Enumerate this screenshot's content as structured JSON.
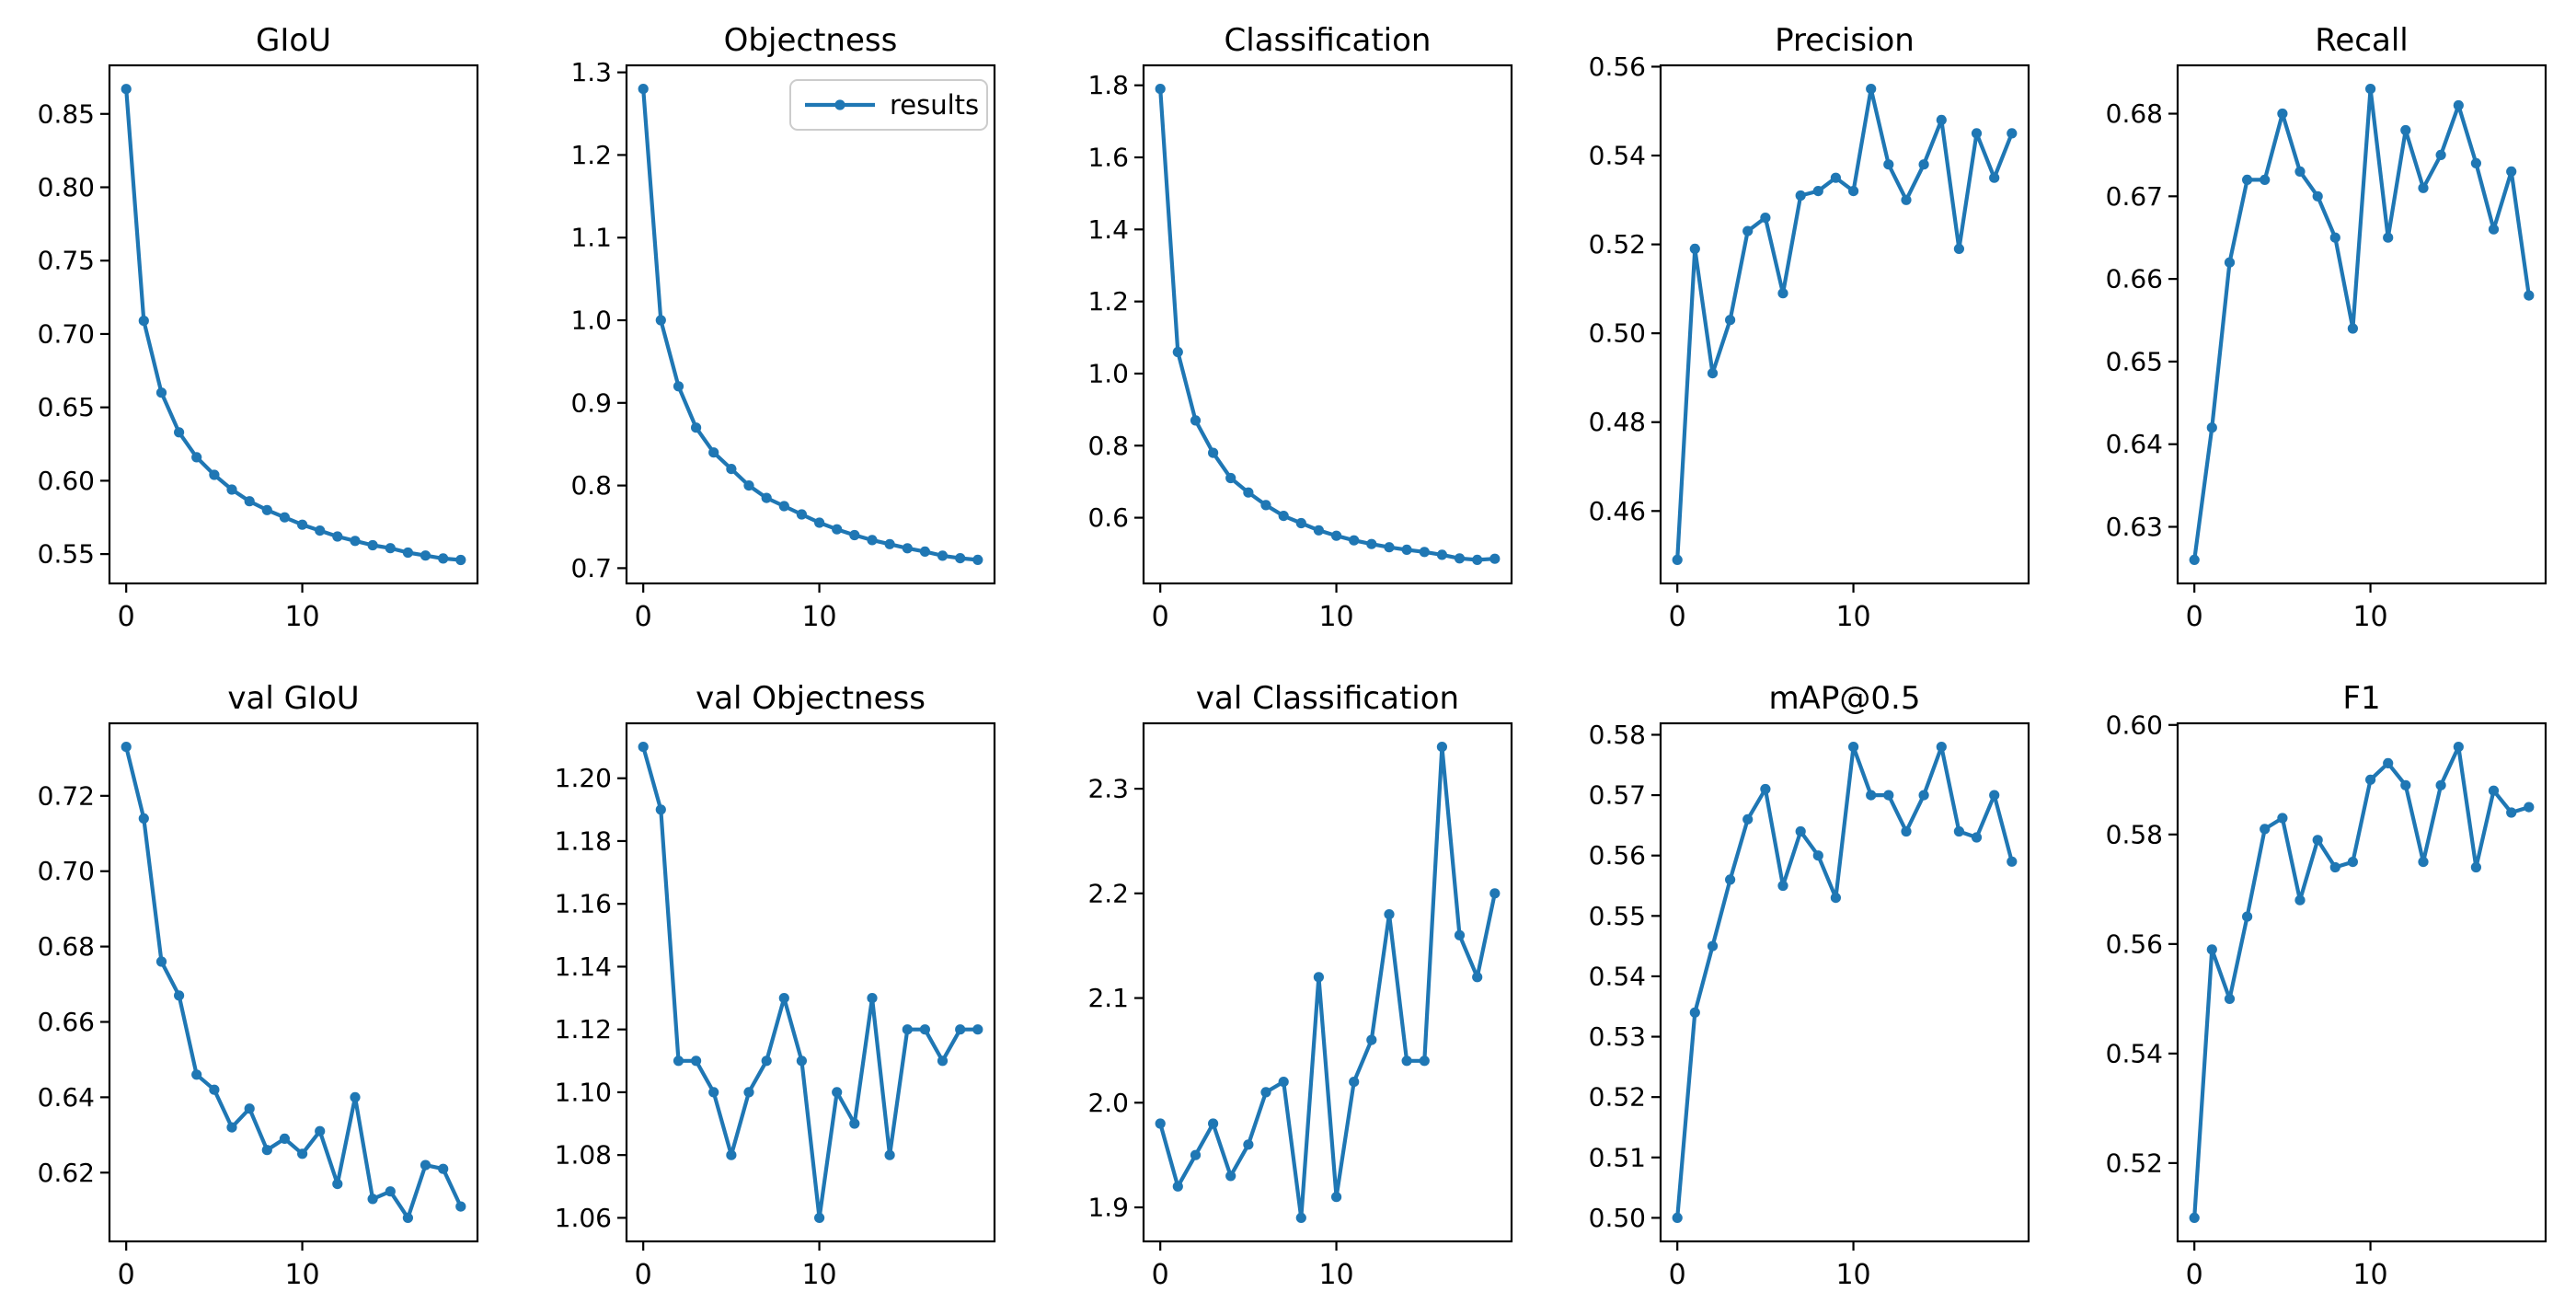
{
  "figure": {
    "background": "#ffffff",
    "line_color": "#1f77b4",
    "text_color": "#000000",
    "legend_label": "results"
  },
  "chart_data": [
    {
      "type": "line",
      "title": "GIoU",
      "series_name": "results",
      "legend_visible": false,
      "x": [
        0,
        1,
        2,
        3,
        4,
        5,
        6,
        7,
        8,
        9,
        10,
        11,
        12,
        13,
        14,
        15,
        16,
        17,
        18,
        19
      ],
      "values": [
        0.867,
        0.709,
        0.66,
        0.633,
        0.616,
        0.604,
        0.594,
        0.586,
        0.58,
        0.575,
        0.57,
        0.566,
        0.562,
        0.559,
        0.556,
        0.554,
        0.551,
        0.549,
        0.547,
        0.546
      ],
      "xlim": [
        -0.95,
        19.95
      ],
      "ylim": [
        0.53,
        0.8831
      ],
      "xticks": [
        0,
        10
      ],
      "yticks": [
        0.55,
        0.6,
        0.65,
        0.7,
        0.75,
        0.8,
        0.85
      ],
      "ytick_decimals": 2,
      "grid": false
    },
    {
      "type": "line",
      "title": "Objectness",
      "series_name": "results",
      "legend_visible": true,
      "legend_position": "upper right",
      "x": [
        0,
        1,
        2,
        3,
        4,
        5,
        6,
        7,
        8,
        9,
        10,
        11,
        12,
        13,
        14,
        15,
        16,
        17,
        18,
        19
      ],
      "values": [
        1.28,
        1.0,
        0.92,
        0.87,
        0.84,
        0.82,
        0.8,
        0.785,
        0.775,
        0.765,
        0.755,
        0.747,
        0.74,
        0.734,
        0.729,
        0.724,
        0.72,
        0.715,
        0.712,
        0.71
      ],
      "xlim": [
        -0.95,
        19.95
      ],
      "ylim": [
        0.6815,
        1.3085
      ],
      "xticks": [
        0,
        10
      ],
      "yticks": [
        0.7,
        0.8,
        0.9,
        1.0,
        1.1,
        1.2,
        1.3
      ],
      "ytick_decimals": 1,
      "grid": false
    },
    {
      "type": "line",
      "title": "Classification",
      "series_name": "results",
      "legend_visible": false,
      "x": [
        0,
        1,
        2,
        3,
        4,
        5,
        6,
        7,
        8,
        9,
        10,
        11,
        12,
        13,
        14,
        15,
        16,
        17,
        18,
        19
      ],
      "values": [
        1.79,
        1.06,
        0.87,
        0.78,
        0.71,
        0.67,
        0.635,
        0.605,
        0.585,
        0.565,
        0.55,
        0.537,
        0.527,
        0.518,
        0.511,
        0.505,
        0.497,
        0.487,
        0.483,
        0.486
      ],
      "xlim": [
        -0.95,
        19.95
      ],
      "ylim": [
        0.4176,
        1.8554
      ],
      "xticks": [
        0,
        10
      ],
      "yticks": [
        0.6,
        0.8,
        1.0,
        1.2,
        1.4,
        1.6,
        1.8
      ],
      "ytick_decimals": 1,
      "grid": false
    },
    {
      "type": "line",
      "title": "Precision",
      "series_name": "results",
      "legend_visible": false,
      "x": [
        0,
        1,
        2,
        3,
        4,
        5,
        6,
        7,
        8,
        9,
        10,
        11,
        12,
        13,
        14,
        15,
        16,
        17,
        18,
        19
      ],
      "values": [
        0.449,
        0.519,
        0.491,
        0.503,
        0.523,
        0.526,
        0.509,
        0.531,
        0.532,
        0.535,
        0.532,
        0.555,
        0.538,
        0.53,
        0.538,
        0.548,
        0.519,
        0.545,
        0.535,
        0.545
      ],
      "xlim": [
        -0.95,
        19.95
      ],
      "ylim": [
        0.4437,
        0.5603
      ],
      "xticks": [
        0,
        10
      ],
      "yticks": [
        0.46,
        0.48,
        0.5,
        0.52,
        0.54,
        0.56
      ],
      "ytick_decimals": 2,
      "grid": false
    },
    {
      "type": "line",
      "title": "Recall",
      "series_name": "results",
      "legend_visible": false,
      "x": [
        0,
        1,
        2,
        3,
        4,
        5,
        6,
        7,
        8,
        9,
        10,
        11,
        12,
        13,
        14,
        15,
        16,
        17,
        18,
        19
      ],
      "values": [
        0.626,
        0.642,
        0.662,
        0.672,
        0.672,
        0.68,
        0.673,
        0.67,
        0.665,
        0.654,
        0.683,
        0.665,
        0.678,
        0.671,
        0.675,
        0.681,
        0.674,
        0.666,
        0.673,
        0.658
      ],
      "xlim": [
        -0.95,
        19.95
      ],
      "ylim": [
        0.62315,
        0.68585
      ],
      "xticks": [
        0,
        10
      ],
      "yticks": [
        0.63,
        0.64,
        0.65,
        0.66,
        0.67,
        0.68
      ],
      "ytick_decimals": 2,
      "grid": false
    },
    {
      "type": "line",
      "title": "val GIoU",
      "series_name": "results",
      "legend_visible": false,
      "x": [
        0,
        1,
        2,
        3,
        4,
        5,
        6,
        7,
        8,
        9,
        10,
        11,
        12,
        13,
        14,
        15,
        16,
        17,
        18,
        19
      ],
      "values": [
        0.733,
        0.714,
        0.676,
        0.667,
        0.646,
        0.642,
        0.632,
        0.637,
        0.626,
        0.629,
        0.625,
        0.631,
        0.617,
        0.64,
        0.613,
        0.615,
        0.608,
        0.622,
        0.621,
        0.611
      ],
      "xlim": [
        -0.95,
        19.95
      ],
      "ylim": [
        0.60175,
        0.73925
      ],
      "xticks": [
        0,
        10
      ],
      "yticks": [
        0.62,
        0.64,
        0.66,
        0.68,
        0.7,
        0.72
      ],
      "ytick_decimals": 2,
      "grid": false
    },
    {
      "type": "line",
      "title": "val Objectness",
      "series_name": "results",
      "legend_visible": false,
      "x": [
        0,
        1,
        2,
        3,
        4,
        5,
        6,
        7,
        8,
        9,
        10,
        11,
        12,
        13,
        14,
        15,
        16,
        17,
        18,
        19
      ],
      "values": [
        1.21,
        1.19,
        1.11,
        1.11,
        1.1,
        1.08,
        1.1,
        1.11,
        1.13,
        1.11,
        1.06,
        1.1,
        1.09,
        1.13,
        1.08,
        1.12,
        1.12,
        1.11,
        1.12,
        1.12
      ],
      "xlim": [
        -0.95,
        19.95
      ],
      "ylim": [
        1.0525,
        1.2175
      ],
      "xticks": [
        0,
        10
      ],
      "yticks": [
        1.06,
        1.08,
        1.1,
        1.12,
        1.14,
        1.16,
        1.18,
        1.2
      ],
      "ytick_decimals": 2,
      "grid": false
    },
    {
      "type": "line",
      "title": "val Classification",
      "series_name": "results",
      "legend_visible": false,
      "x": [
        0,
        1,
        2,
        3,
        4,
        5,
        6,
        7,
        8,
        9,
        10,
        11,
        12,
        13,
        14,
        15,
        16,
        17,
        18,
        19
      ],
      "values": [
        1.98,
        1.92,
        1.95,
        1.98,
        1.93,
        1.96,
        2.01,
        2.02,
        1.89,
        2.12,
        1.91,
        2.02,
        2.06,
        2.18,
        2.04,
        2.04,
        2.34,
        2.16,
        2.12,
        2.2
      ],
      "xlim": [
        -0.95,
        19.95
      ],
      "ylim": [
        1.8675,
        2.3625
      ],
      "xticks": [
        0,
        10
      ],
      "yticks": [
        1.9,
        2.0,
        2.1,
        2.2,
        2.3
      ],
      "ytick_decimals": 1,
      "grid": false
    },
    {
      "type": "line",
      "title": "mAP@0.5",
      "series_name": "results",
      "legend_visible": false,
      "x": [
        0,
        1,
        2,
        3,
        4,
        5,
        6,
        7,
        8,
        9,
        10,
        11,
        12,
        13,
        14,
        15,
        16,
        17,
        18,
        19
      ],
      "values": [
        0.5,
        0.534,
        0.545,
        0.556,
        0.566,
        0.571,
        0.555,
        0.564,
        0.56,
        0.553,
        0.578,
        0.57,
        0.57,
        0.564,
        0.57,
        0.578,
        0.564,
        0.563,
        0.57,
        0.559
      ],
      "xlim": [
        -0.95,
        19.95
      ],
      "ylim": [
        0.4961,
        0.5819
      ],
      "xticks": [
        0,
        10
      ],
      "yticks": [
        0.5,
        0.51,
        0.52,
        0.53,
        0.54,
        0.55,
        0.56,
        0.57,
        0.58
      ],
      "ytick_decimals": 2,
      "grid": false
    },
    {
      "type": "line",
      "title": "F1",
      "series_name": "results",
      "legend_visible": false,
      "x": [
        0,
        1,
        2,
        3,
        4,
        5,
        6,
        7,
        8,
        9,
        10,
        11,
        12,
        13,
        14,
        15,
        16,
        17,
        18,
        19
      ],
      "values": [
        0.51,
        0.559,
        0.55,
        0.565,
        0.581,
        0.583,
        0.568,
        0.579,
        0.574,
        0.575,
        0.59,
        0.593,
        0.589,
        0.575,
        0.589,
        0.596,
        0.574,
        0.588,
        0.584,
        0.585
      ],
      "xlim": [
        -0.95,
        19.95
      ],
      "ylim": [
        0.5057,
        0.6003
      ],
      "xticks": [
        0,
        10
      ],
      "yticks": [
        0.52,
        0.54,
        0.56,
        0.58,
        0.6
      ],
      "ytick_decimals": 2,
      "grid": false
    }
  ]
}
